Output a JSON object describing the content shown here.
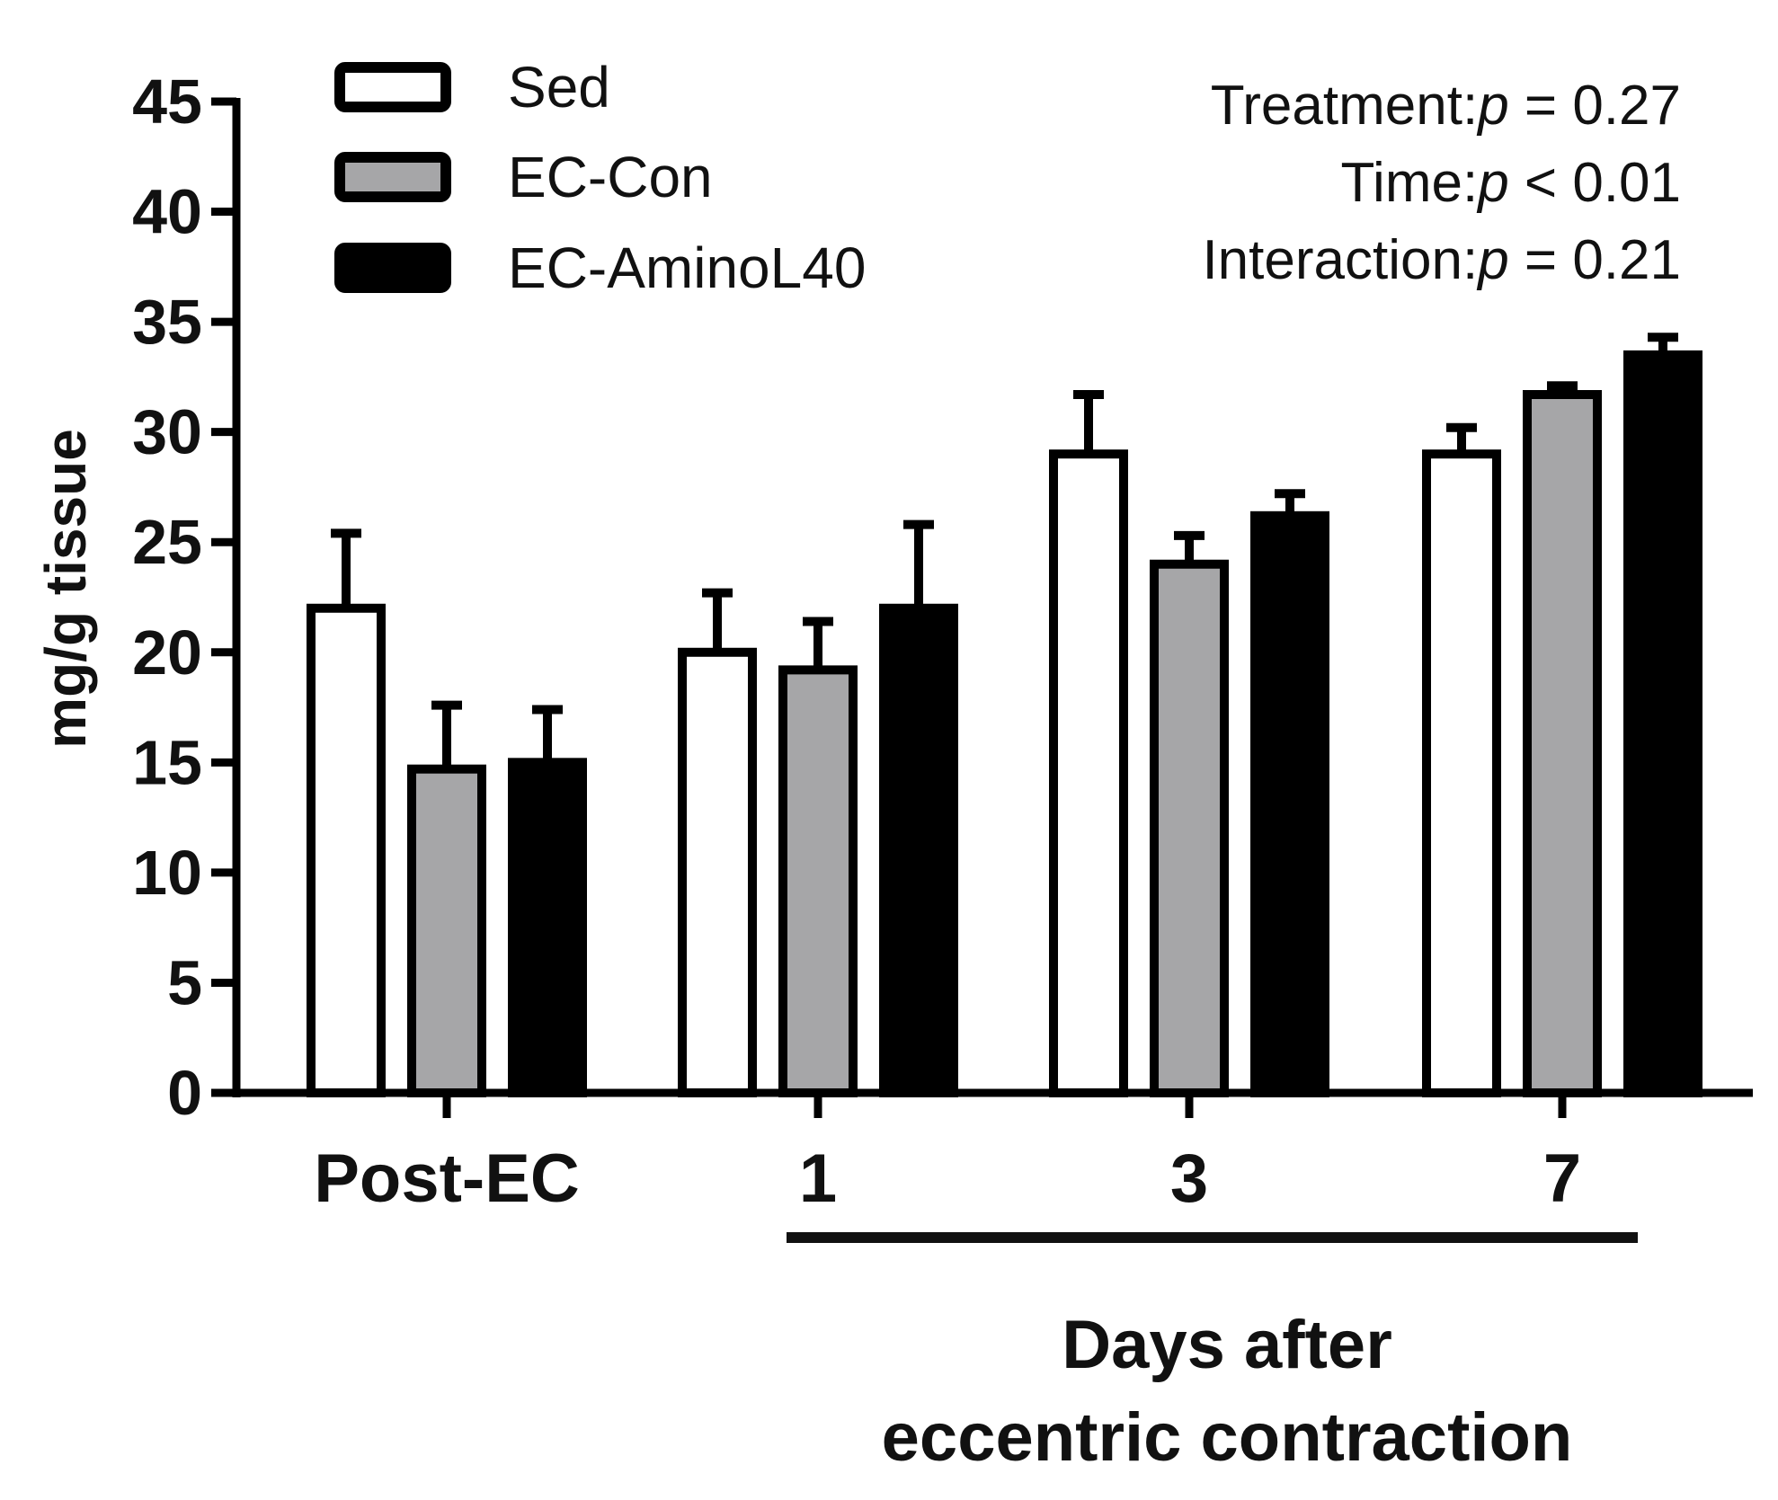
{
  "chart_data": {
    "type": "bar",
    "ylabel": "mg/g tissue",
    "xlabel": "Days after eccentric contraction",
    "xlabel_lines": [
      "Days after",
      "eccentric contraction"
    ],
    "ylim": [
      0,
      45
    ],
    "yticks": [
      0,
      5,
      10,
      15,
      20,
      25,
      30,
      35,
      40,
      45
    ],
    "categories": [
      "Post-EC",
      "1",
      "3",
      "7"
    ],
    "series": [
      {
        "name": "Sed",
        "color": "#ffffff",
        "values": [
          22,
          20,
          29,
          29
        ],
        "errors": [
          3.4,
          2.7,
          2.7,
          1.2
        ]
      },
      {
        "name": "EC-Con",
        "color": "#a6a6a8",
        "values": [
          14.7,
          19.2,
          24,
          31.7
        ],
        "errors": [
          2.9,
          2.2,
          1.3,
          0.4
        ]
      },
      {
        "name": "EC-AminoL40",
        "color": "#000000",
        "values": [
          15,
          22,
          26.2,
          33.5
        ],
        "errors": [
          2.4,
          3.8,
          1.0,
          0.8
        ]
      }
    ],
    "legend_position": "top-left",
    "grid": false,
    "annotations": [
      {
        "label": "Treatment:",
        "italic": "p",
        "rest": " = 0.27"
      },
      {
        "label": "Time:",
        "italic": "p",
        "rest": " < 0.01"
      },
      {
        "label": "Interaction:",
        "italic": "p",
        "rest": " = 0.21"
      }
    ]
  }
}
